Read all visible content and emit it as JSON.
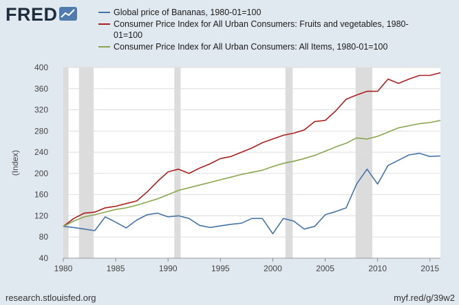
{
  "brand": {
    "logo_text": "FRED",
    "logo_icon": "line-chart-icon"
  },
  "footer": {
    "source": "research.stlouisfed.org",
    "short_url": "myf.red/g/39w2"
  },
  "colors": {
    "bananas": "#4572a7",
    "fruits": "#aa1e1e",
    "cpi_all": "#89a54e",
    "recession": "#dcdcdc",
    "grid": "#dddddd",
    "background": "#e1e9f0"
  },
  "chart_data": {
    "type": "line",
    "title": "",
    "xlabel": "",
    "ylabel": "(Index)",
    "xlim": [
      1980,
      2016
    ],
    "ylim": [
      40,
      400
    ],
    "x_ticks": [
      1980,
      1985,
      1990,
      1995,
      2000,
      2005,
      2010,
      2015
    ],
    "x_tick_labels": [
      "1980",
      "1985",
      "1990",
      "1995",
      "2000",
      "2005",
      "2010",
      "2015"
    ],
    "y_ticks": [
      40,
      80,
      120,
      160,
      200,
      240,
      280,
      320,
      360,
      400
    ],
    "y_tick_labels": [
      "40",
      "80",
      "120",
      "160",
      "200",
      "240",
      "280",
      "320",
      "360",
      "400"
    ],
    "recessions": [
      [
        1980.0,
        1980.5
      ],
      [
        1981.5,
        1982.9
      ],
      [
        1990.6,
        1991.2
      ],
      [
        2001.2,
        2001.9
      ],
      [
        2007.9,
        2009.5
      ]
    ],
    "series": [
      {
        "name": "Global price of Bananas, 1980-01=100",
        "color": "#4572a7",
        "x": [
          1980,
          1981,
          1982,
          1983,
          1984,
          1985,
          1986,
          1987,
          1988,
          1989,
          1990,
          1991,
          1992,
          1993,
          1994,
          1995,
          1996,
          1997,
          1998,
          1999,
          2000,
          2001,
          2002,
          2003,
          2004,
          2005,
          2006,
          2007,
          2008,
          2009,
          2010,
          2011,
          2012,
          2013,
          2014,
          2015,
          2016
        ],
        "values": [
          100,
          98,
          95,
          92,
          118,
          108,
          97,
          112,
          122,
          125,
          118,
          120,
          115,
          102,
          98,
          101,
          104,
          106,
          115,
          115,
          86,
          115,
          110,
          95,
          100,
          122,
          128,
          135,
          180,
          208,
          180,
          215,
          225,
          235,
          238,
          232,
          233
        ],
        "legend": [
          "Global price of Bananas, 1980-01=100"
        ]
      },
      {
        "name": "Consumer Price Index for All Urban Consumers: Fruits and vegetables, 1980-01=100",
        "color": "#aa1e1e",
        "x": [
          1980,
          1981,
          1982,
          1983,
          1984,
          1985,
          1986,
          1987,
          1988,
          1989,
          1990,
          1991,
          1992,
          1993,
          1994,
          1995,
          1996,
          1997,
          1998,
          1999,
          2000,
          2001,
          2002,
          2003,
          2004,
          2005,
          2006,
          2007,
          2008,
          2009,
          2010,
          2011,
          2012,
          2013,
          2014,
          2015,
          2016
        ],
        "values": [
          100,
          115,
          125,
          127,
          135,
          138,
          143,
          148,
          165,
          185,
          203,
          208,
          200,
          210,
          218,
          228,
          232,
          240,
          248,
          258,
          265,
          272,
          276,
          282,
          298,
          300,
          318,
          340,
          348,
          355,
          355,
          378,
          370,
          378,
          385,
          385,
          390
        ],
        "legend": [
          "Consumer Price Index for All Urban Consumers: Fruits and vegetables, 1980-",
          "01=100"
        ]
      },
      {
        "name": "Consumer Price Index for All Urban Consumers: All Items, 1980-01=100",
        "color": "#89a54e",
        "x": [
          1980,
          1981,
          1982,
          1983,
          1984,
          1985,
          1986,
          1987,
          1988,
          1989,
          1990,
          1991,
          1992,
          1993,
          1994,
          1995,
          1996,
          1997,
          1998,
          1999,
          2000,
          2001,
          2002,
          2003,
          2004,
          2005,
          2006,
          2007,
          2008,
          2009,
          2010,
          2011,
          2012,
          2013,
          2014,
          2015,
          2016
        ],
        "values": [
          100,
          110,
          118,
          122,
          127,
          132,
          135,
          140,
          146,
          152,
          160,
          168,
          173,
          178,
          183,
          188,
          193,
          198,
          202,
          206,
          213,
          219,
          223,
          228,
          234,
          242,
          250,
          257,
          267,
          265,
          270,
          278,
          286,
          290,
          294,
          296,
          300
        ],
        "legend": [
          "Consumer Price Index for All Urban Consumers: All Items, 1980-01=100"
        ]
      }
    ]
  }
}
